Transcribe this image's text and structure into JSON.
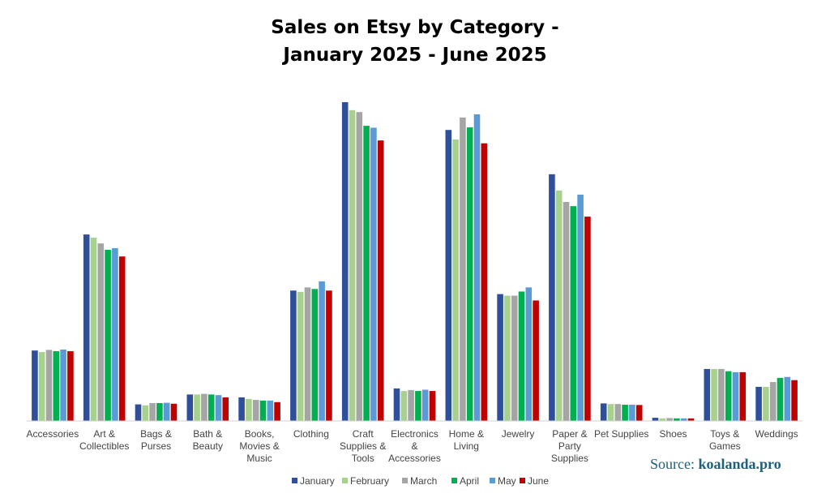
{
  "chart_data": {
    "type": "bar",
    "title": [
      "Sales on Etsy by Category -",
      "January 2025 - June 2025"
    ],
    "categories": [
      [
        "Accessories"
      ],
      [
        "Art &",
        "Collectibles"
      ],
      [
        "Bags &",
        "Purses"
      ],
      [
        "Bath &",
        "Beauty"
      ],
      [
        "Books,",
        "Movies &",
        "Music"
      ],
      [
        "Clothing"
      ],
      [
        "Craft",
        "Supplies &",
        "Tools"
      ],
      [
        "Electronics",
        "&",
        "Accessories"
      ],
      [
        "Home &",
        "Living"
      ],
      [
        "Jewelry"
      ],
      [
        "Paper &",
        "Party",
        "Supplies"
      ],
      [
        "Pet Supplies"
      ],
      [
        "Shoes"
      ],
      [
        "Toys &",
        "Games"
      ],
      [
        "Weddings"
      ]
    ],
    "series": [
      {
        "name": "January",
        "color": "#2f4f9a",
        "values": [
          22.1,
          58.5,
          5.2,
          8.3,
          7.4,
          40.9,
          100.0,
          10.2,
          91.3,
          39.8,
          77.4,
          5.5,
          1.0,
          16.3,
          10.7
        ]
      },
      {
        "name": "February",
        "color": "#a9d18e",
        "values": [
          21.6,
          57.5,
          4.9,
          8.3,
          6.9,
          40.5,
          97.5,
          9.4,
          88.3,
          39.3,
          72.3,
          5.3,
          0.8,
          16.3,
          10.7
        ]
      },
      {
        "name": "March",
        "color": "#a5a5a5",
        "values": [
          22.3,
          55.7,
          5.6,
          8.5,
          6.6,
          41.9,
          96.9,
          9.7,
          95.2,
          39.3,
          68.7,
          5.3,
          0.9,
          16.3,
          12.2
        ]
      },
      {
        "name": "April",
        "color": "#00b050",
        "values": [
          21.9,
          53.7,
          5.6,
          8.3,
          6.4,
          41.4,
          92.6,
          9.4,
          92.1,
          40.6,
          67.4,
          5.1,
          0.8,
          15.6,
          13.5
        ]
      },
      {
        "name": "May",
        "color": "#5b9bd5",
        "values": [
          22.4,
          54.2,
          5.7,
          8.1,
          6.4,
          43.8,
          92.0,
          9.8,
          96.2,
          41.9,
          71.0,
          5.1,
          0.8,
          15.3,
          13.8
        ]
      },
      {
        "name": "June",
        "color": "#c00000",
        "values": [
          21.9,
          51.6,
          5.4,
          7.4,
          5.9,
          40.9,
          88.0,
          9.4,
          87.1,
          37.8,
          64.1,
          5.0,
          0.8,
          15.3,
          12.8
        ]
      }
    ],
    "ylim": [
      0,
      100
    ],
    "grid": false,
    "legend_position": "bottom"
  },
  "source": {
    "prefix": "Source: ",
    "site": "koalanda.pro"
  }
}
